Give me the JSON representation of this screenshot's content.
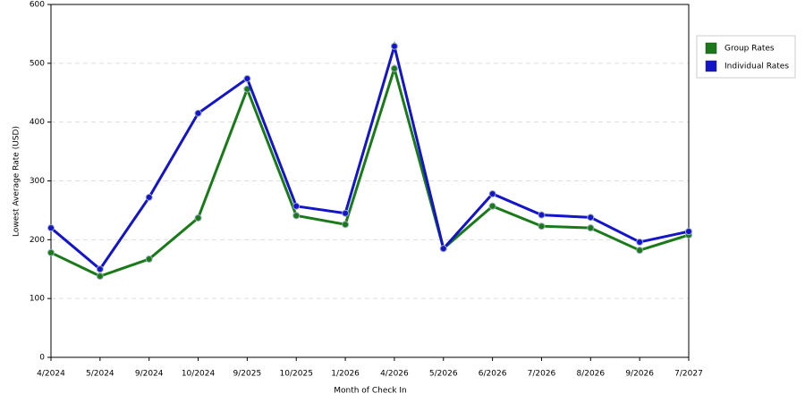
{
  "chart_data": {
    "type": "line",
    "x_label": "Month of Check In",
    "y_label": "Lowest Average Rate (USD)",
    "categories": [
      "4/2024",
      "5/2024",
      "9/2024",
      "10/2024",
      "9/2025",
      "10/2025",
      "1/2026",
      "4/2026",
      "5/2026",
      "6/2026",
      "7/2026",
      "8/2026",
      "9/2026",
      "7/2027"
    ],
    "series": [
      {
        "name": "Group Rates",
        "color": "#1a7a1a",
        "values": [
          178,
          138,
          167,
          237,
          456,
          241,
          226,
          491,
          185,
          257,
          223,
          220,
          182,
          208
        ]
      },
      {
        "name": "Individual Rates",
        "color": "#1414c8",
        "values": [
          220,
          150,
          272,
          415,
          474,
          257,
          245,
          529,
          185,
          278,
          242,
          238,
          196,
          214
        ]
      }
    ],
    "ylim": [
      0,
      600
    ],
    "yticks": [
      0,
      100,
      200,
      300,
      400,
      500,
      600
    ],
    "grid": true,
    "legend": "right"
  }
}
